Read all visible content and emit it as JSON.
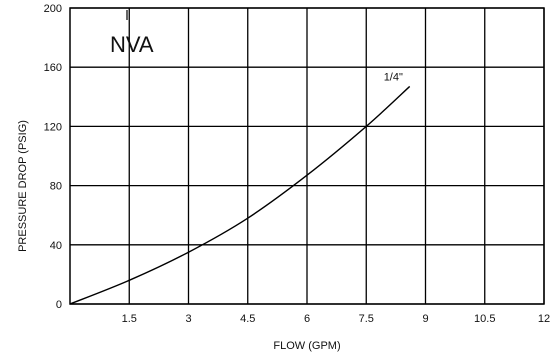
{
  "chart_data": {
    "type": "line",
    "title": "NVA",
    "xlabel": "FLOW (GPM)",
    "ylabel": "PRESSURE DROP (PSIG)",
    "xlim": [
      0,
      12
    ],
    "ylim": [
      0,
      200
    ],
    "x_ticks": [
      1.5,
      3,
      4.5,
      6,
      7.5,
      9,
      10.5,
      12
    ],
    "x_tick_labels": [
      "1.5",
      "3",
      "4.5",
      "6",
      "7.5",
      "9",
      "10.5",
      "12"
    ],
    "y_ticks": [
      0,
      40,
      80,
      120,
      160,
      200
    ],
    "y_tick_labels": [
      "0",
      "40",
      "80",
      "120",
      "160",
      "200"
    ],
    "grid": true,
    "series": [
      {
        "name": "1/4\"",
        "color": "#000000",
        "x": [
          0,
          1.5,
          3,
          4.5,
          6,
          7.5,
          8.6
        ],
        "y": [
          0,
          16,
          35,
          58,
          87,
          120,
          147
        ]
      }
    ]
  }
}
